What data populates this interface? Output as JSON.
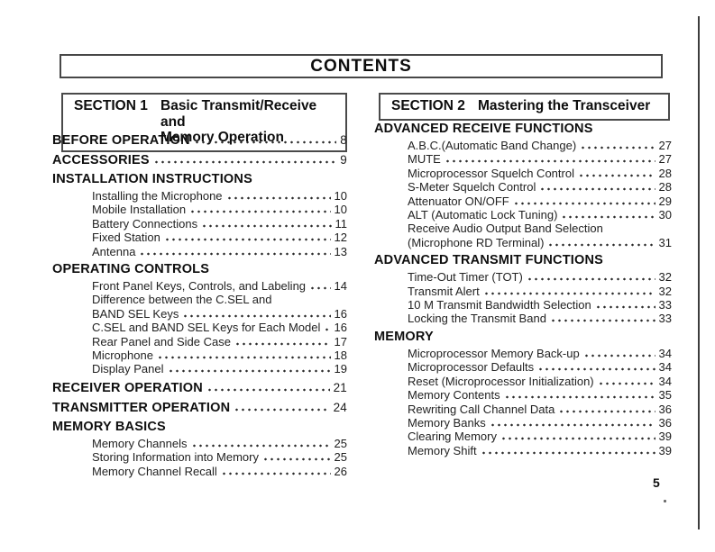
{
  "page_title": "CONTENTS",
  "page_number": "5",
  "sections": [
    {
      "label": "SECTION 1",
      "title_lines": [
        "Basic Transmit/Receive and",
        "Memory Operation"
      ],
      "entries": [
        {
          "t": "h",
          "label": "BEFORE OPERATION",
          "page": "8"
        },
        {
          "t": "h",
          "label": "ACCESSORIES",
          "page": "9"
        },
        {
          "t": "h",
          "label": "INSTALLATION INSTRUCTIONS"
        },
        {
          "t": "i",
          "label": "Installing the Microphone",
          "page": "10"
        },
        {
          "t": "i",
          "label": "Mobile Installation",
          "page": "10"
        },
        {
          "t": "i",
          "label": "Battery Connections",
          "page": "11"
        },
        {
          "t": "i",
          "label": "Fixed Station",
          "page": "12"
        },
        {
          "t": "i",
          "label": "Antenna",
          "page": "13"
        },
        {
          "t": "h",
          "label": "OPERATING CONTROLS"
        },
        {
          "t": "i",
          "label": "Front Panel Keys, Controls, and Labeling",
          "page": "14"
        },
        {
          "t": "i",
          "lines": [
            "Difference between the C.SEL and",
            "BAND SEL Keys"
          ],
          "page": "16"
        },
        {
          "t": "i",
          "label": "C.SEL and BAND SEL Keys for Each Model",
          "page": "16"
        },
        {
          "t": "i",
          "label": "Rear Panel and Side Case",
          "page": "17"
        },
        {
          "t": "i",
          "label": "Microphone",
          "page": "18"
        },
        {
          "t": "i",
          "label": "Display Panel",
          "page": "19"
        },
        {
          "t": "h",
          "label": "RECEIVER OPERATION",
          "page": "21"
        },
        {
          "t": "h",
          "label": "TRANSMITTER OPERATION",
          "page": "24"
        },
        {
          "t": "h",
          "label": "MEMORY BASICS"
        },
        {
          "t": "i",
          "label": "Memory Channels",
          "page": "25"
        },
        {
          "t": "i",
          "label": "Storing Information into Memory",
          "page": "25"
        },
        {
          "t": "i",
          "label": "Memory Channel Recall",
          "page": "26"
        }
      ]
    },
    {
      "label": "SECTION 2",
      "title_lines": [
        "Mastering the Transceiver"
      ],
      "entries": [
        {
          "t": "h",
          "label": "ADVANCED RECEIVE FUNCTIONS"
        },
        {
          "t": "i",
          "label": "A.B.C.(Automatic Band Change)",
          "page": "27"
        },
        {
          "t": "i",
          "label": "MUTE",
          "page": "27"
        },
        {
          "t": "i",
          "label": "Microprocessor Squelch Control",
          "page": "28"
        },
        {
          "t": "i",
          "label": "S-Meter Squelch Control",
          "page": "28"
        },
        {
          "t": "i",
          "label": "Attenuator ON/OFF",
          "page": "29"
        },
        {
          "t": "i",
          "label": "ALT (Automatic Lock Tuning)",
          "page": "30"
        },
        {
          "t": "i",
          "lines": [
            "Receive Audio Output Band Selection",
            "(Microphone RD Terminal)"
          ],
          "page": "31"
        },
        {
          "t": "h",
          "label": "ADVANCED TRANSMIT FUNCTIONS"
        },
        {
          "t": "i",
          "label": "Time-Out Timer (TOT)",
          "page": "32"
        },
        {
          "t": "i",
          "label": "Transmit Alert",
          "page": "32"
        },
        {
          "t": "i",
          "label": "10 M Transmit Bandwidth Selection",
          "page": "33"
        },
        {
          "t": "i",
          "label": "Locking the Transmit Band",
          "page": "33"
        },
        {
          "t": "h",
          "label": "MEMORY"
        },
        {
          "t": "i",
          "label": "Microprocessor Memory Back-up",
          "page": "34"
        },
        {
          "t": "i",
          "label": "Microprocessor Defaults",
          "page": "34"
        },
        {
          "t": "i",
          "label": "Reset (Microprocessor Initialization)",
          "page": "34"
        },
        {
          "t": "i",
          "label": "Memory Contents",
          "page": "35"
        },
        {
          "t": "i",
          "label": "Rewriting Call Channel Data",
          "page": "36"
        },
        {
          "t": "i",
          "label": "Memory Banks",
          "page": "36"
        },
        {
          "t": "i",
          "label": "Clearing Memory",
          "page": "39"
        },
        {
          "t": "i",
          "label": "Memory Shift",
          "page": "39"
        }
      ]
    }
  ]
}
